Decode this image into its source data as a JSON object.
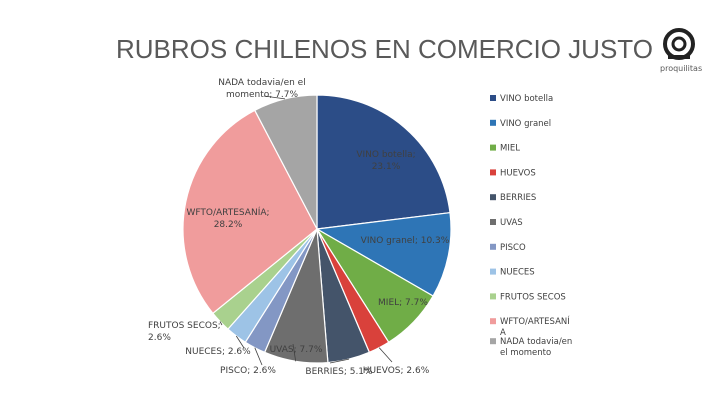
{
  "chart_data": {
    "type": "pie",
    "title": "RUBROS CHILENOS EN COMERCIO JUSTO",
    "slices": [
      {
        "name": "VINO botella",
        "value": 23.1,
        "label": "VINO botella; 23.1%",
        "color": "#2c4d87"
      },
      {
        "name": "VINO granel",
        "value": 10.3,
        "label": "VINO granel; 10.3%",
        "color": "#2e75b6"
      },
      {
        "name": "MIEL",
        "value": 7.7,
        "label": "MIEL; 7.7%",
        "color": "#70ad47"
      },
      {
        "name": "HUEVOS",
        "value": 2.6,
        "label": "HUEVOS; 2.6%",
        "color": "#d9413b"
      },
      {
        "name": "BERRIES",
        "value": 5.1,
        "label": "BERRIES; 5.1%",
        "color": "#44546a"
      },
      {
        "name": "UVAS",
        "value": 7.7,
        "label": "UVAS; 7.7%",
        "color": "#6e6e6e"
      },
      {
        "name": "PISCO",
        "value": 2.6,
        "label": "PISCO; 2.6%",
        "color": "#8397c4"
      },
      {
        "name": "NUECES",
        "value": 2.6,
        "label": "NUECES; 2.6%",
        "color": "#9dc3e6"
      },
      {
        "name": "FRUTOS SECOS",
        "value": 2.6,
        "label": "FRUTOS SECOS; 2.6%",
        "color": "#a9d18e"
      },
      {
        "name": "WFTO/ARTESANÍA",
        "value": 28.2,
        "label": "WFTO/ARTESANÍA; 28.2%",
        "color": "#f09c9c"
      },
      {
        "name": "NADA todavia/en el momento",
        "value": 7.7,
        "label": "NADA todavia/en el momento; 7.7%",
        "color": "#a5a5a5"
      }
    ],
    "legend_position": "right"
  },
  "logo": {
    "brand_text": "proquilitas"
  }
}
